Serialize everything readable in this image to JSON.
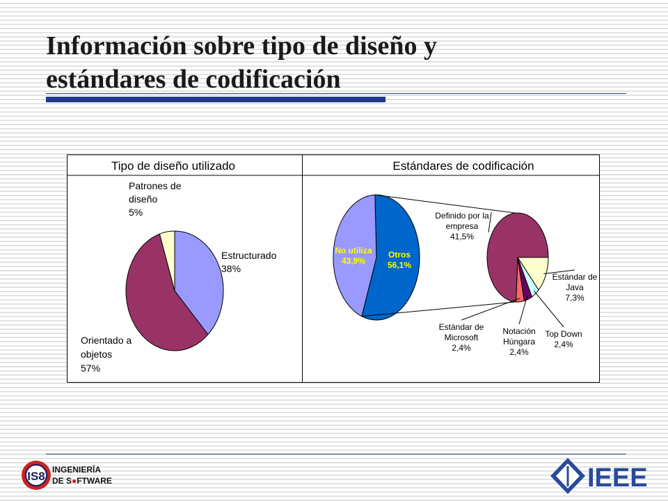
{
  "slide": {
    "title_line1": "Información sobre tipo de diseño y",
    "title_line2": "estándares de codificación"
  },
  "chart_data": [
    {
      "type": "pie",
      "title": "Tipo de diseño utilizado",
      "slices": [
        {
          "label_lines": [
            "Estructurado",
            "38%"
          ],
          "value": 38,
          "color": "#9999ff"
        },
        {
          "label_lines": [
            "Orientado a",
            "objetos",
            "57%"
          ],
          "value": 57,
          "color": "#993366"
        },
        {
          "label_lines": [
            "Patrones de",
            "diseño",
            "5%"
          ],
          "value": 5,
          "color": "#ffffcc"
        }
      ]
    },
    {
      "type": "pie",
      "title": "Estándares de codificación",
      "slices": [
        {
          "label_lines": [
            "Otros",
            "56,1%"
          ],
          "value": 56.1,
          "color": "#0066cc"
        },
        {
          "label_lines": [
            "No utiliza",
            "43,9%"
          ],
          "value": 43.9,
          "color": "#9999ff"
        }
      ],
      "breakdown_of": "Otros",
      "breakdown": [
        {
          "label_lines": [
            "Estándar de",
            "Java",
            "7,3%"
          ],
          "value": 7.3,
          "color": "#ffffcc"
        },
        {
          "label_lines": [
            "Top Down",
            "2,4%"
          ],
          "value": 2.4,
          "color": "#ccffff"
        },
        {
          "label_lines": [
            "Notación",
            "Húngara",
            "2,4%"
          ],
          "value": 2.4,
          "color": "#660066"
        },
        {
          "label_lines": [
            "Estándar de",
            "Microsoft",
            "2,4%"
          ],
          "value": 2.4,
          "color": "#ff6666"
        },
        {
          "label_lines": [
            "Definido por la",
            "empresa",
            "41,5%"
          ],
          "value": 41.5,
          "color": "#993366"
        }
      ]
    }
  ],
  "logos": {
    "left_emblem": "IS8",
    "left_line1": "INGENIERÍA",
    "left_line2_a": "DE S",
    "left_line2_b": "FTWARE",
    "right": "IEEE"
  },
  "colors": {
    "title_rule": "#1f3a8c",
    "ieee_blue": "#2a4a9a"
  }
}
